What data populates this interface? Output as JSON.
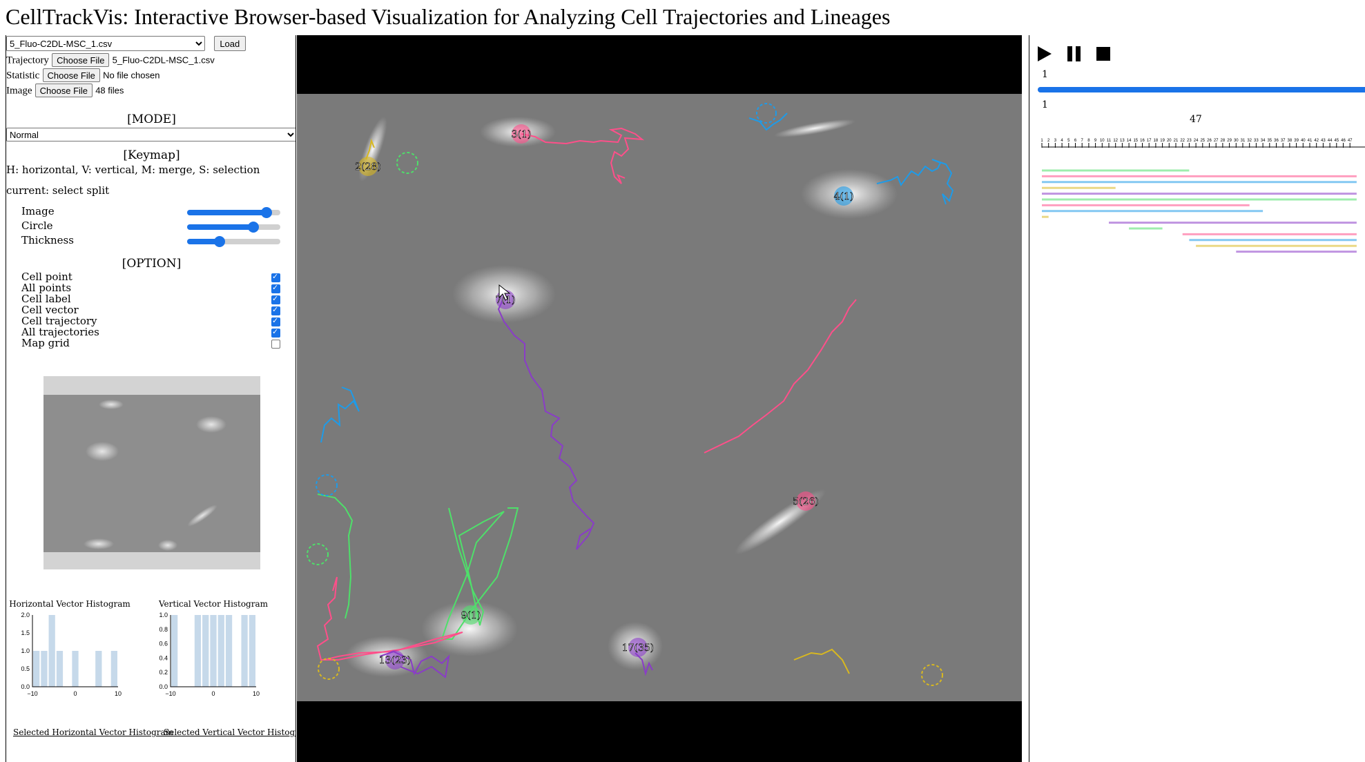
{
  "title": "CellTrackVis: Interactive Browser-based Visualization for Analyzing Cell Trajectories and Lineages",
  "dataset": {
    "selected": "5_Fluo-C2DL-MSC_1.csv",
    "load_label": "Load"
  },
  "files": [
    {
      "label": "Trajectory",
      "button": "Choose File",
      "status": "5_Fluo-C2DL-MSC_1.csv"
    },
    {
      "label": "Statistic",
      "button": "Choose File",
      "status": "No file chosen"
    },
    {
      "label": "Image",
      "button": "Choose File",
      "status": "48 files"
    }
  ],
  "mode": {
    "title": "[MODE]",
    "selected": "Normal"
  },
  "keymap": {
    "title": "[Keymap]",
    "text": "H: horizontal, V: vertical, M: merge, S: selection",
    "current": "current: select split"
  },
  "sliders": [
    {
      "label": "Image",
      "value": 0.85
    },
    {
      "label": "Circle",
      "value": 0.71
    },
    {
      "label": "Thickness",
      "value": 0.35
    }
  ],
  "options": {
    "title": "[OPTION]",
    "items": [
      {
        "label": "Cell point",
        "checked": true
      },
      {
        "label": "All points",
        "checked": true
      },
      {
        "label": "Cell label",
        "checked": true
      },
      {
        "label": "Cell vector",
        "checked": true
      },
      {
        "label": "Cell trajectory",
        "checked": true
      },
      {
        "label": "All trajectories",
        "checked": true
      },
      {
        "label": "Map grid",
        "checked": false
      }
    ]
  },
  "histograms": {
    "horizontal": {
      "title": "Horizontal Vector Histogram",
      "link": "Selected Horizontal Vector Histogram",
      "yticks": [
        "2.0",
        "1.5",
        "1.0",
        "0.5",
        "0.0"
      ],
      "xticks": [
        "−10",
        "0",
        "10"
      ],
      "bars": [
        1,
        1,
        2,
        1,
        0,
        1,
        0,
        0,
        1,
        0,
        1
      ],
      "ymax": 2
    },
    "vertical": {
      "title": "Vertical Vector Histogram",
      "link": "Selected Vertical Vector Histogram",
      "yticks": [
        "1.0",
        "0.8",
        "0.6",
        "0.4",
        "0.2",
        "0.0"
      ],
      "xticks": [
        "−10",
        "0",
        "10"
      ],
      "bars": [
        1,
        0,
        0,
        1,
        1,
        1,
        1,
        1,
        0,
        1,
        1
      ],
      "ymax": 1
    }
  },
  "cell_labels": [
    "3(1)",
    "2(28)",
    "4(1)",
    "7(1)",
    "5(26)",
    "9(1)",
    "13(23)",
    "17(35)"
  ],
  "player": {
    "current_frame": "1",
    "slider_value": 1.0,
    "range_min": "1",
    "range_max": "47",
    "timeline_ticks": [
      "1",
      "2",
      "3",
      "4",
      "5",
      "6",
      "7",
      "8",
      "9",
      "10",
      "11",
      "12",
      "13",
      "14",
      "15",
      "16",
      "17",
      "18",
      "19",
      "20",
      "21",
      "22",
      "23",
      "24",
      "25",
      "26",
      "27",
      "28",
      "29",
      "30",
      "31",
      "32",
      "33",
      "34",
      "35",
      "36",
      "37",
      "38",
      "39",
      "40",
      "41",
      "42",
      "43",
      "44",
      "45",
      "46",
      "47"
    ]
  },
  "colors": {
    "accent": "#1a73e8",
    "green": "#4ee06a",
    "pink": "#ff4f8a",
    "blue": "#1e9be8",
    "purple": "#8a3cc8",
    "yellow": "#d8b820"
  }
}
